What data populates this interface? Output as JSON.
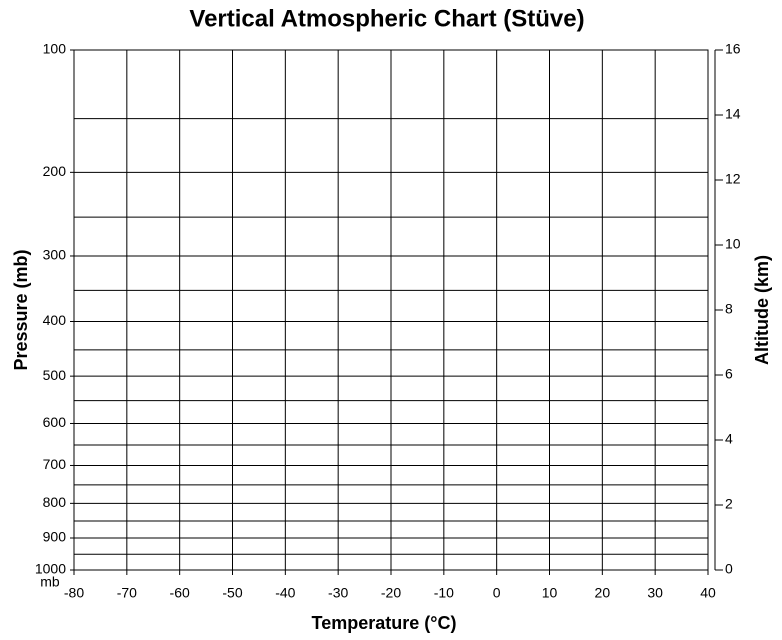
{
  "chart_data": {
    "type": "stuve",
    "title": "Vertical Atmospheric Chart (Stüve)",
    "xlabel": "Temperature (°C)",
    "ylabel": "Pressure (mb)",
    "yunit": "mb",
    "y2label": "Altitude (km)",
    "xlim": [
      -80,
      40
    ],
    "xticks": [
      -80,
      -70,
      -60,
      -50,
      -40,
      -30,
      -20,
      -10,
      0,
      10,
      20,
      30,
      40
    ],
    "ylim": [
      100,
      1000
    ],
    "yscale": "stuve",
    "yticks": [
      100,
      200,
      300,
      400,
      500,
      600,
      700,
      800,
      900,
      1000
    ],
    "ygrid": [
      150,
      200,
      250,
      300,
      350,
      400,
      450,
      500,
      550,
      600,
      650,
      700,
      750,
      800,
      850,
      900,
      950,
      1000
    ],
    "y2lim": [
      0,
      16
    ],
    "y2ticks": [
      0,
      2,
      4,
      6,
      8,
      10,
      12,
      14,
      16
    ],
    "grid": true,
    "grid_color": "#000000"
  }
}
